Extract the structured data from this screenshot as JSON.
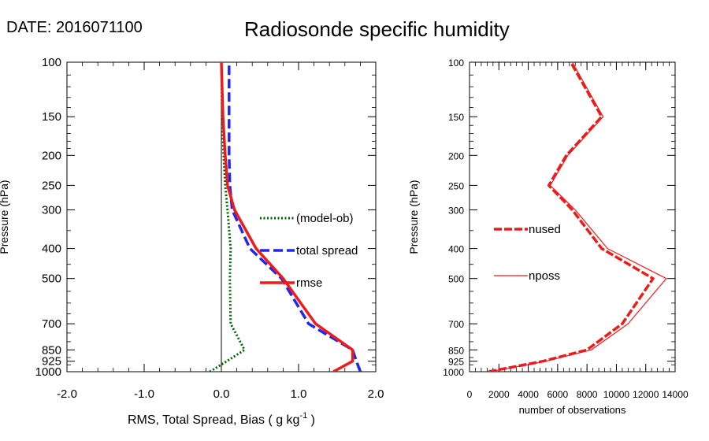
{
  "header": {
    "date_label": "DATE:",
    "date_value": "2016071100",
    "title": "Radiosonde specific humidity"
  },
  "chart_data": [
    {
      "type": "line",
      "ylabel": "Pressure (hPa)",
      "xlabel_main": "RMS, Total Spread, Bias ( g kg",
      "xlabel_sup": "-1",
      "xlabel_end": " )",
      "xlim": [
        -2.0,
        2.0
      ],
      "xticks": [
        -2.0,
        -1.0,
        0.0,
        1.0,
        2.0
      ],
      "xtick_labels": [
        "-2.0",
        "-1.0",
        "0.0",
        "1.0",
        "2.0"
      ],
      "ylim": [
        1000,
        100
      ],
      "yscale": "log",
      "yticks": [
        100,
        150,
        200,
        250,
        300,
        400,
        500,
        700,
        850,
        925,
        1000
      ],
      "ytick_labels": [
        "100",
        "150",
        "200",
        "250",
        "300",
        "400",
        "500",
        "700",
        "850",
        "925",
        "1000"
      ],
      "zero_line": 0.0,
      "series": [
        {
          "name": "(model-ob)",
          "color": "#006400",
          "style": "dotted",
          "x": [
            -0.15,
            0.07,
            0.3,
            0.12,
            0.11,
            0.12,
            0.08,
            0.05,
            0.03,
            0.01,
            0.0
          ],
          "y": [
            1000,
            925,
            850,
            700,
            500,
            400,
            300,
            250,
            200,
            150,
            100
          ]
        },
        {
          "name": "total spread",
          "color": "#1e28ee",
          "style": "dashed",
          "x": [
            1.8,
            1.75,
            1.7,
            1.13,
            0.78,
            0.37,
            0.14,
            0.11,
            0.1,
            0.1,
            0.1
          ],
          "y": [
            1000,
            925,
            850,
            700,
            500,
            400,
            300,
            250,
            200,
            150,
            100
          ]
        },
        {
          "name": "rmse",
          "color": "#ee1b1b",
          "style": "solid",
          "x": [
            1.45,
            1.7,
            1.7,
            1.22,
            0.8,
            0.45,
            0.17,
            0.08,
            0.05,
            0.02,
            0.0
          ],
          "y": [
            1000,
            925,
            850,
            700,
            500,
            400,
            300,
            250,
            200,
            150,
            100
          ]
        }
      ]
    },
    {
      "type": "line",
      "ylabel": "Pressure (hPa)",
      "xlabel": "number of observations",
      "xlim": [
        0,
        14000
      ],
      "xticks": [
        0,
        2000,
        4000,
        6000,
        8000,
        10000,
        12000,
        14000
      ],
      "xtick_labels": [
        "0",
        "2000",
        "4000",
        "6000",
        "8000",
        "10000",
        "12000",
        "14000"
      ],
      "ylim": [
        1000,
        100
      ],
      "yscale": "log",
      "yticks": [
        100,
        150,
        200,
        250,
        300,
        400,
        500,
        700,
        850,
        925,
        1000
      ],
      "ytick_labels": [
        "100",
        "150",
        "200",
        "250",
        "300",
        "400",
        "500",
        "700",
        "850",
        "925",
        "1000"
      ],
      "series": [
        {
          "name": "nused",
          "color": "#ee1b1b",
          "style": "dashed-thick",
          "x": [
            1300,
            5000,
            8000,
            10400,
            12500,
            9000,
            7000,
            5400,
            6600,
            9000,
            6900
          ],
          "y": [
            1000,
            925,
            850,
            700,
            500,
            400,
            300,
            250,
            200,
            150,
            100
          ]
        },
        {
          "name": "nposs",
          "color": "#ee1b1b",
          "style": "thin",
          "x": [
            1400,
            5200,
            8300,
            10800,
            13400,
            9400,
            7200,
            5500,
            6700,
            9100,
            7000
          ],
          "y": [
            1000,
            925,
            850,
            700,
            500,
            400,
            300,
            250,
            200,
            150,
            100
          ]
        }
      ]
    }
  ]
}
